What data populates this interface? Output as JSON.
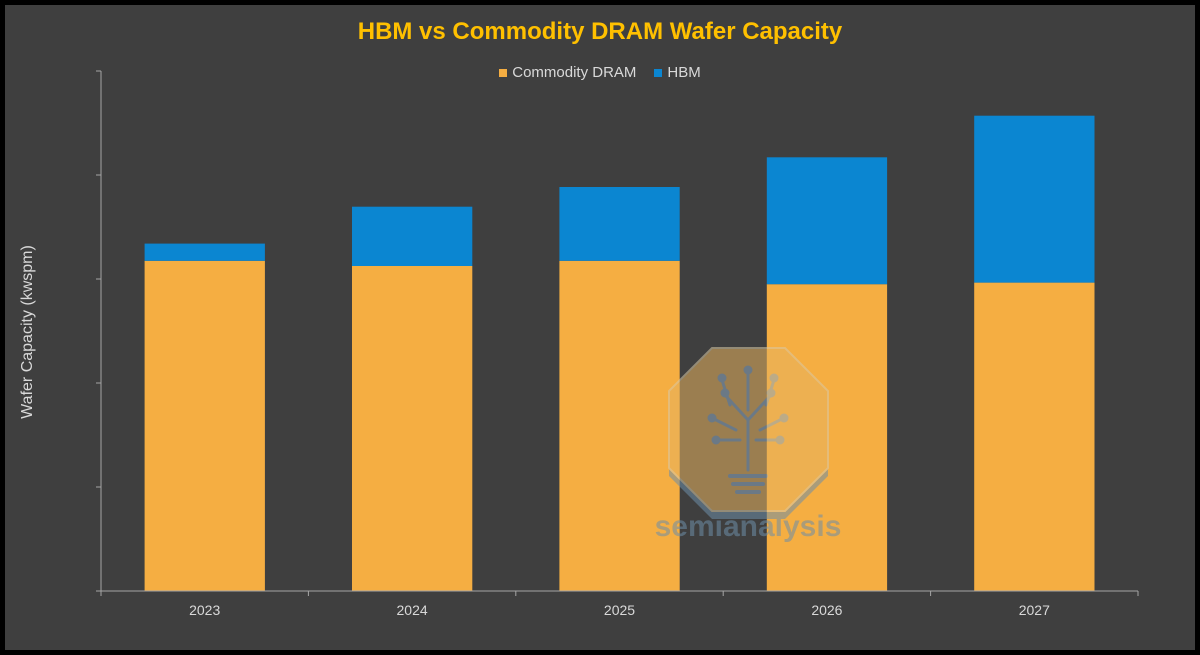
{
  "chart_data": {
    "type": "bar",
    "stacked": true,
    "title": "HBM vs Commodity DRAM Wafer Capacity",
    "xlabel": "",
    "ylabel": "Wafer Capacity (kwspm)",
    "categories": [
      "2023",
      "2024",
      "2025",
      "2026",
      "2027"
    ],
    "series": [
      {
        "name": "Commodity DRAM",
        "color": "#f5ae42",
        "values": [
          63.5,
          62.5,
          63.5,
          59,
          59.3
        ]
      },
      {
        "name": "HBM",
        "color": "#0b86d1",
        "values": [
          3.3,
          11.4,
          14.2,
          24.4,
          32.1
        ]
      }
    ],
    "ylim": [
      0,
      100
    ],
    "ytick_labels_shown": false,
    "grid": false,
    "legend_position": "top-center"
  },
  "colors": {
    "background": "#3f3f3f",
    "title": "#ffc000",
    "text": "#d9d9d9",
    "axis": "#a6a6a6"
  },
  "watermark": {
    "text": "semianalysis",
    "icon": "circuit-tree-lightbulb-icon"
  }
}
